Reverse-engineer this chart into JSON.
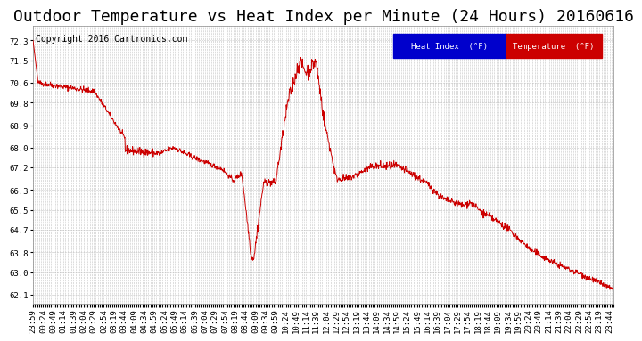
{
  "title": "Outdoor Temperature vs Heat Index per Minute (24 Hours) 20160616",
  "copyright_text": "Copyright 2016 Cartronics.com",
  "ylabel": "",
  "xlabel": "",
  "bg_color": "#ffffff",
  "plot_bg_color": "#ffffff",
  "grid_color": "#aaaaaa",
  "line_color": "#cc0000",
  "line_color2": "#cc0000",
  "ylim": [
    61.7,
    72.9
  ],
  "yticks": [
    62.1,
    63.0,
    63.8,
    64.7,
    65.5,
    66.3,
    67.2,
    68.0,
    68.9,
    69.8,
    70.6,
    71.5,
    72.3
  ],
  "legend_heat_index_bg": "#0000cc",
  "legend_temp_bg": "#cc0000",
  "legend_heat_index_text": "Heat Index  (°F)",
  "legend_temp_text": "Temperature  (°F)",
  "title_fontsize": 13,
  "tick_fontsize": 6.5,
  "copyright_fontsize": 7
}
